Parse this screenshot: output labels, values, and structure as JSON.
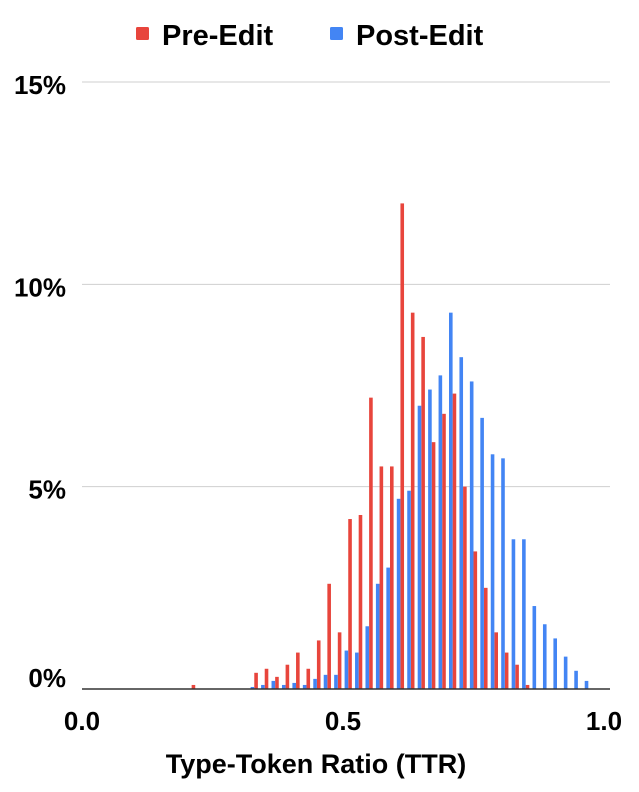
{
  "chart_data": {
    "type": "bar",
    "title": "",
    "xlabel": "Type-Token Ratio (TTR)",
    "ylabel": "",
    "xlim": [
      0.0,
      1.0
    ],
    "ylim": [
      0,
      15
    ],
    "x_ticks": [
      "0.0",
      "0.5",
      "1.0"
    ],
    "y_ticks": [
      {
        "value": 0,
        "label": "0%"
      },
      {
        "value": 5,
        "label": "5%"
      },
      {
        "value": 10,
        "label": "10%"
      },
      {
        "value": 15,
        "label": "15%"
      }
    ],
    "grid": true,
    "legend_position": "top",
    "series": [
      {
        "name": "Pre-Edit",
        "color": "#e8453c",
        "points": [
          {
            "x": 0.22,
            "y": 0.1
          },
          {
            "x": 0.34,
            "y": 0.4
          },
          {
            "x": 0.36,
            "y": 0.5
          },
          {
            "x": 0.38,
            "y": 0.3
          },
          {
            "x": 0.4,
            "y": 0.6
          },
          {
            "x": 0.42,
            "y": 0.9
          },
          {
            "x": 0.44,
            "y": 0.5
          },
          {
            "x": 0.46,
            "y": 1.2
          },
          {
            "x": 0.48,
            "y": 2.6
          },
          {
            "x": 0.5,
            "y": 1.4
          },
          {
            "x": 0.52,
            "y": 4.2
          },
          {
            "x": 0.54,
            "y": 4.3
          },
          {
            "x": 0.56,
            "y": 7.2
          },
          {
            "x": 0.58,
            "y": 5.5
          },
          {
            "x": 0.6,
            "y": 5.5
          },
          {
            "x": 0.62,
            "y": 12.0
          },
          {
            "x": 0.64,
            "y": 9.3
          },
          {
            "x": 0.66,
            "y": 8.7
          },
          {
            "x": 0.68,
            "y": 6.1
          },
          {
            "x": 0.7,
            "y": 6.8
          },
          {
            "x": 0.72,
            "y": 7.3
          },
          {
            "x": 0.74,
            "y": 5.0
          },
          {
            "x": 0.76,
            "y": 3.4
          },
          {
            "x": 0.78,
            "y": 2.5
          },
          {
            "x": 0.8,
            "y": 1.4
          },
          {
            "x": 0.82,
            "y": 0.9
          },
          {
            "x": 0.84,
            "y": 0.6
          },
          {
            "x": 0.86,
            "y": 0.1
          }
        ]
      },
      {
        "name": "Post-Edit",
        "color": "#4385f4",
        "points": [
          {
            "x": 0.32,
            "y": 0.05
          },
          {
            "x": 0.34,
            "y": 0.1
          },
          {
            "x": 0.36,
            "y": 0.2
          },
          {
            "x": 0.38,
            "y": 0.1
          },
          {
            "x": 0.4,
            "y": 0.15
          },
          {
            "x": 0.42,
            "y": 0.1
          },
          {
            "x": 0.44,
            "y": 0.25
          },
          {
            "x": 0.46,
            "y": 0.35
          },
          {
            "x": 0.48,
            "y": 0.35
          },
          {
            "x": 0.5,
            "y": 0.95
          },
          {
            "x": 0.52,
            "y": 0.9
          },
          {
            "x": 0.54,
            "y": 1.55
          },
          {
            "x": 0.56,
            "y": 2.6
          },
          {
            "x": 0.58,
            "y": 3.0
          },
          {
            "x": 0.6,
            "y": 4.7
          },
          {
            "x": 0.62,
            "y": 4.9
          },
          {
            "x": 0.64,
            "y": 7.0
          },
          {
            "x": 0.66,
            "y": 7.4
          },
          {
            "x": 0.68,
            "y": 7.75
          },
          {
            "x": 0.7,
            "y": 9.3
          },
          {
            "x": 0.72,
            "y": 8.2
          },
          {
            "x": 0.74,
            "y": 7.6
          },
          {
            "x": 0.76,
            "y": 6.7
          },
          {
            "x": 0.78,
            "y": 5.8
          },
          {
            "x": 0.8,
            "y": 5.7
          },
          {
            "x": 0.82,
            "y": 3.7
          },
          {
            "x": 0.84,
            "y": 3.7
          },
          {
            "x": 0.86,
            "y": 2.05
          },
          {
            "x": 0.88,
            "y": 1.6
          },
          {
            "x": 0.9,
            "y": 1.25
          },
          {
            "x": 0.92,
            "y": 0.8
          },
          {
            "x": 0.94,
            "y": 0.45
          },
          {
            "x": 0.96,
            "y": 0.2
          }
        ]
      }
    ]
  }
}
